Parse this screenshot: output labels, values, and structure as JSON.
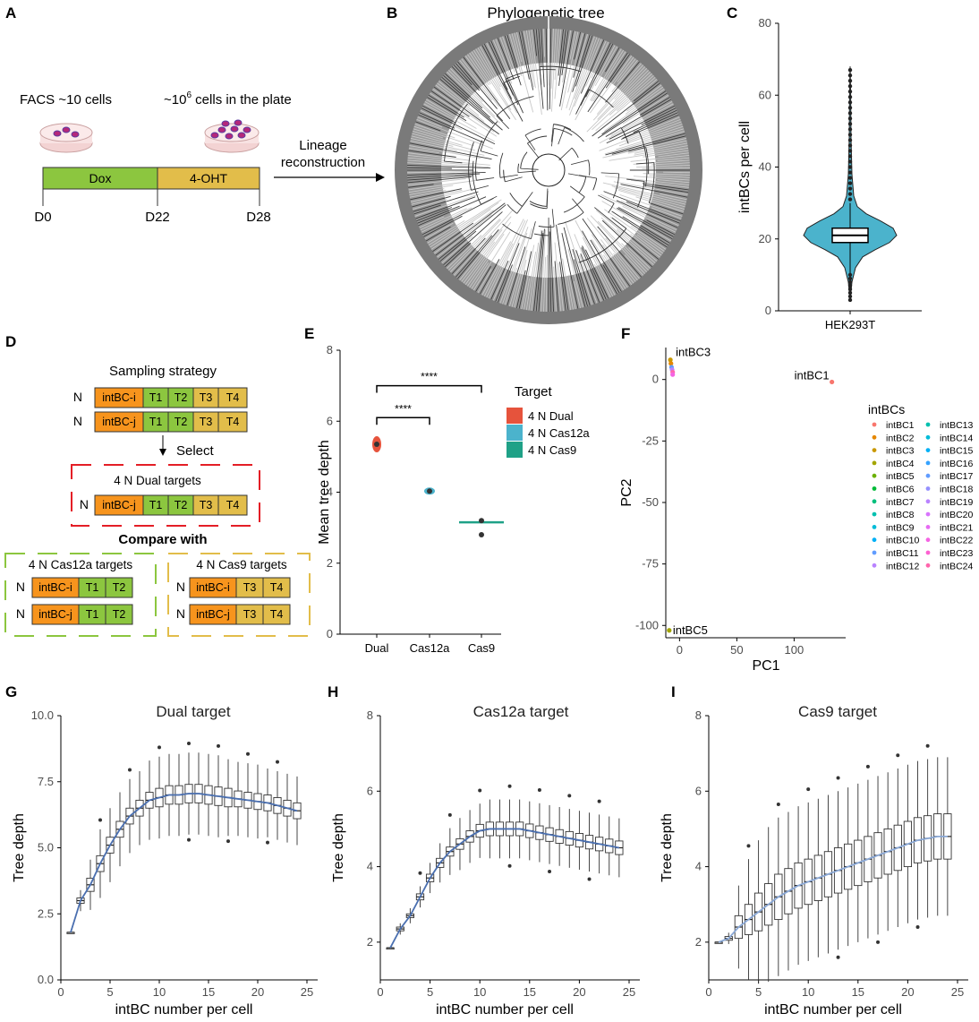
{
  "panels": {
    "A": {
      "label": "A",
      "facs_text": "FACS ~10 cells",
      "cells_text_pre": "~10",
      "cells_text_sup": "6",
      "cells_text_post": " cells in the plate",
      "dox": "Dox",
      "ohT": "4-OHT",
      "d0": "D0",
      "d22": "D22",
      "d28": "D28",
      "lineage_line1": "Lineage",
      "lineage_line2": "reconstruction",
      "colors": {
        "dox": "#8cc63f",
        "oht": "#e2bd4a"
      }
    },
    "B": {
      "label": "B",
      "title": "Phylogenetic tree"
    },
    "C": {
      "label": "C"
    },
    "D": {
      "label": "D",
      "sampling": "Sampling strategy",
      "N": "N",
      "intbc_i": "intBC-i",
      "intbc_j": "intBC-j",
      "t1": "T1",
      "t2": "T2",
      "t3": "T3",
      "t4": "T4",
      "select": "Select",
      "dual_title": "4 N Dual targets",
      "compare": "Compare with",
      "cas12a_title": "4 N Cas12a targets",
      "cas9_title": "4 N Cas9 targets",
      "colors": {
        "intbc": "#f7941d",
        "green": "#8cc63f",
        "yellow": "#e2bd4a",
        "red_dash": "#e41e26",
        "green_dash": "#8cc63f",
        "yellow_dash": "#e2bd4a"
      }
    },
    "E": {
      "label": "E",
      "sig1": "****",
      "sig2": "****"
    },
    "F": {
      "label": "F"
    },
    "G": {
      "label": "G"
    },
    "H": {
      "label": "H"
    },
    "I": {
      "label": "I"
    }
  },
  "chart_data": [
    {
      "id": "C",
      "type": "violin",
      "title": "",
      "xlabel": "",
      "ylabel": "intBCs per cell",
      "categories": [
        "HEK293T"
      ],
      "ylim": [
        0,
        80
      ],
      "yticks": [
        0,
        20,
        40,
        60,
        80
      ],
      "box": {
        "q1": 19,
        "median": 21,
        "q3": 23,
        "whisker_low": 10,
        "whisker_high": 30
      },
      "max_outlier": 68,
      "min_outlier": 3,
      "color": "#4bb3cc"
    },
    {
      "id": "E",
      "type": "scatter",
      "xlabel": "",
      "ylabel": "Mean tree depth",
      "categories": [
        "Dual",
        "Cas12a",
        "Cas9"
      ],
      "ylim": [
        0,
        8
      ],
      "yticks": [
        0,
        2,
        4,
        6,
        8
      ],
      "values": [
        5.35,
        4.03,
        3.1
      ],
      "legend_title": "Target",
      "legend": [
        {
          "name": "4 N Dual",
          "color": "#e6533c"
        },
        {
          "name": "4 N Cas12a",
          "color": "#4bb3cc"
        },
        {
          "name": "4 N Cas9",
          "color": "#1fa187"
        }
      ]
    },
    {
      "id": "F",
      "type": "scatter",
      "xlabel": "PC1",
      "ylabel": "PC2",
      "xlim": [
        -12,
        145
      ],
      "ylim": [
        -105,
        13
      ],
      "xticks": [
        0,
        50,
        100
      ],
      "yticks": [
        0,
        -25,
        -50,
        -75,
        -100
      ],
      "annotations": [
        {
          "text": "intBC3",
          "x": -8,
          "y": 8
        },
        {
          "text": "intBC1",
          "x": 133,
          "y": -1
        },
        {
          "text": "intBC5",
          "x": -9,
          "y": -102
        }
      ],
      "points": [
        {
          "x": -8,
          "y": 8
        },
        {
          "x": -7.5,
          "y": 6.5
        },
        {
          "x": -7,
          "y": 5
        },
        {
          "x": -6.5,
          "y": 4
        },
        {
          "x": -6,
          "y": 3
        },
        {
          "x": -6,
          "y": 2
        },
        {
          "x": 133,
          "y": -1
        },
        {
          "x": -9,
          "y": -102
        }
      ],
      "legend_title": "intBCs",
      "legend": [
        "intBC1",
        "intBC2",
        "intBC3",
        "intBC4",
        "intBC5",
        "intBC6",
        "intBC7",
        "intBC8",
        "intBC9",
        "intBC10",
        "intBC11",
        "intBC12",
        "intBC13",
        "intBC14",
        "intBC15",
        "intBC16",
        "intBC17",
        "intBC18",
        "intBC19",
        "intBC20",
        "intBC21",
        "intBC22",
        "intBC23",
        "intBC24"
      ],
      "legend_colors": [
        "#f8766d",
        "#e58700",
        "#c99800",
        "#a3a500",
        "#6bb100",
        "#00ba38",
        "#00bf7d",
        "#00c0af",
        "#00bcd8",
        "#00b0f6",
        "#619cff",
        "#b983ff",
        "#00c0af",
        "#00bcd8",
        "#00b0f6",
        "#35a2ff",
        "#619cff",
        "#9590ff",
        "#b983ff",
        "#d874fd",
        "#e76bf3",
        "#f564e3",
        "#fd61d1",
        "#ff65ac"
      ]
    },
    {
      "id": "G",
      "type": "boxplot",
      "title": "Dual target",
      "xlabel": "intBC number per cell",
      "ylabel": "Tree depth",
      "xlim": [
        0,
        25
      ],
      "ylim": [
        0,
        10
      ],
      "xticks": [
        0,
        5,
        10,
        15,
        20,
        25
      ],
      "yticks": [
        0.0,
        2.5,
        5.0,
        7.5,
        10.0
      ],
      "ytick_labels": [
        "0.0",
        "2.5",
        "5.0",
        "7.5",
        "10.0"
      ],
      "medians": [
        1.8,
        3.0,
        3.6,
        4.4,
        5.1,
        5.7,
        6.2,
        6.5,
        6.8,
        6.9,
        7.0,
        7.0,
        7.05,
        7.05,
        7.0,
        6.95,
        6.9,
        6.85,
        6.8,
        6.75,
        6.7,
        6.6,
        6.5,
        6.4
      ],
      "q_half": [
        0,
        0.1,
        0.25,
        0.3,
        0.3,
        0.3,
        0.3,
        0.3,
        0.3,
        0.35,
        0.35,
        0.35,
        0.35,
        0.35,
        0.35,
        0.35,
        0.35,
        0.3,
        0.3,
        0.3,
        0.3,
        0.3,
        0.3,
        0.3
      ],
      "whisker": [
        0,
        0.3,
        0.7,
        1.0,
        1.1,
        1.1,
        1.1,
        1.1,
        1.2,
        1.2,
        1.2,
        1.2,
        1.2,
        1.2,
        1.2,
        1.2,
        1.1,
        1.1,
        1.1,
        1.1,
        1.0,
        1.0,
        1.0,
        1.0
      ],
      "fit_color": "#4a6fb0"
    },
    {
      "id": "H",
      "type": "boxplot",
      "title": "Cas12a target",
      "xlabel": "intBC number per cell",
      "ylabel": "Tree depth",
      "xlim": [
        0,
        25
      ],
      "ylim": [
        1,
        8
      ],
      "xticks": [
        0,
        5,
        10,
        15,
        20,
        25
      ],
      "yticks": [
        2,
        4,
        6,
        8
      ],
      "ytick_labels": [
        "2",
        "4",
        "6",
        "8"
      ],
      "medians": [
        1.85,
        2.35,
        2.7,
        3.2,
        3.7,
        4.1,
        4.4,
        4.6,
        4.8,
        4.95,
        5.0,
        5.0,
        5.0,
        5.0,
        4.95,
        4.9,
        4.85,
        4.8,
        4.75,
        4.7,
        4.65,
        4.6,
        4.55,
        4.5
      ],
      "q_half": [
        0,
        0.05,
        0.05,
        0.08,
        0.1,
        0.12,
        0.12,
        0.14,
        0.15,
        0.17,
        0.18,
        0.18,
        0.18,
        0.18,
        0.18,
        0.18,
        0.18,
        0.18,
        0.18,
        0.18,
        0.18,
        0.18,
        0.18,
        0.18
      ],
      "whisker": [
        0,
        0.1,
        0.15,
        0.2,
        0.3,
        0.4,
        0.5,
        0.55,
        0.55,
        0.55,
        0.6,
        0.6,
        0.6,
        0.6,
        0.6,
        0.6,
        0.6,
        0.6,
        0.6,
        0.6,
        0.6,
        0.6,
        0.6,
        0.6
      ],
      "fit_color": "#4a6fb0"
    },
    {
      "id": "I",
      "type": "boxplot",
      "title": "Cas9 target",
      "xlabel": "intBC number per cell",
      "ylabel": "Tree depth",
      "xlim": [
        0,
        25
      ],
      "ylim": [
        1,
        8
      ],
      "xticks": [
        0,
        5,
        10,
        15,
        20,
        25
      ],
      "yticks": [
        2,
        4,
        6,
        8
      ],
      "ytick_labels": [
        "2",
        "4",
        "6",
        "8"
      ],
      "medians": [
        2.0,
        2.1,
        2.4,
        2.6,
        2.8,
        3.0,
        3.2,
        3.35,
        3.5,
        3.6,
        3.7,
        3.8,
        3.9,
        4.0,
        4.1,
        4.2,
        4.3,
        4.4,
        4.5,
        4.6,
        4.7,
        4.75,
        4.8,
        4.8
      ],
      "q_half": [
        0,
        0.05,
        0.3,
        0.4,
        0.5,
        0.55,
        0.6,
        0.6,
        0.6,
        0.6,
        0.6,
        0.6,
        0.6,
        0.6,
        0.6,
        0.6,
        0.6,
        0.6,
        0.6,
        0.6,
        0.6,
        0.6,
        0.6,
        0.6
      ],
      "whisker": [
        0,
        0.1,
        0.8,
        1.2,
        1.4,
        1.5,
        1.5,
        1.5,
        1.5,
        1.5,
        1.5,
        1.5,
        1.5,
        1.5,
        1.5,
        1.5,
        1.5,
        1.5,
        1.5,
        1.5,
        1.5,
        1.5,
        1.5,
        1.5
      ],
      "fit_color": "#8aa8d6"
    }
  ]
}
